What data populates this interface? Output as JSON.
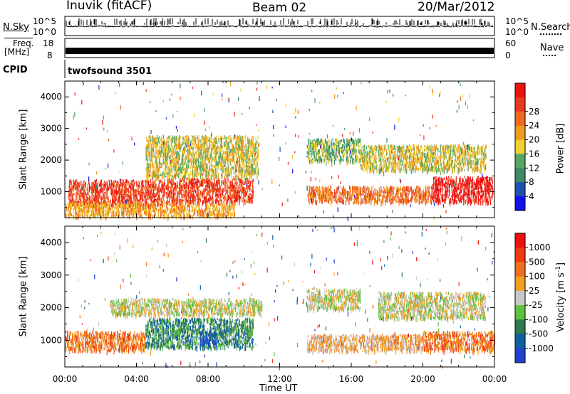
{
  "header": {
    "station": "Inuvik (fitACF)",
    "beam": "Beam 02",
    "date": "20/Mar/2012"
  },
  "strips": {
    "nsky": {
      "label": "N.Sky",
      "tick_top": "10^5",
      "tick_bottom": "10^0"
    },
    "nsearch": {
      "label": "N.Search",
      "tick_top": "10^5",
      "tick_bottom": "10^0"
    },
    "freq": {
      "label_line1": "Freq.",
      "label_line2": "[MHz]",
      "tick_top": "18",
      "tick_bottom": "8"
    },
    "nave": {
      "label": "Nave",
      "tick_top": "60",
      "tick_bottom": "0"
    },
    "cpid": {
      "label": "CPID",
      "value": "twofsound 3501"
    }
  },
  "chart_data": [
    {
      "type": "heatmap",
      "panel": "power",
      "ylabel": "Slant Range [km]",
      "xlabel": "Time UT",
      "ylim": [
        180,
        4500
      ],
      "y_ticks": [
        "1000",
        "2000",
        "3000",
        "4000"
      ],
      "x_ticks": [
        "00:00",
        "04:00",
        "08:00",
        "12:00",
        "16:00",
        "20:00",
        "00:00"
      ],
      "colorbar": {
        "label": "Power [dB]",
        "ticks": [
          "4",
          "8",
          "12",
          "16",
          "20",
          "24",
          "28"
        ],
        "colors": [
          "#1010f0",
          "#2050b0",
          "#3d8a68",
          "#55a865",
          "#f0d030",
          "#f09a20",
          "#f06a20",
          "#e83a20",
          "#f01010"
        ]
      },
      "echo_regions": [
        {
          "t": [
            0.2,
            5.5
          ],
          "r": [
            600,
            1400
          ],
          "level": 7
        },
        {
          "t": [
            0,
            9.5
          ],
          "r": [
            250,
            700
          ],
          "level": 5
        },
        {
          "t": [
            5.5,
            10.5
          ],
          "r": [
            700,
            1450
          ],
          "level": 7
        },
        {
          "t": [
            4.5,
            10.8
          ],
          "r": [
            1500,
            2800
          ],
          "level": 4
        },
        {
          "t": [
            13.5,
            16.5
          ],
          "r": [
            2000,
            2700
          ],
          "level": 3
        },
        {
          "t": [
            13.5,
            20.5
          ],
          "r": [
            700,
            1200
          ],
          "level": 6
        },
        {
          "t": [
            20.5,
            23.9
          ],
          "r": [
            700,
            1500
          ],
          "level": 8
        },
        {
          "t": [
            16.5,
            23.5
          ],
          "r": [
            1700,
            2500
          ],
          "level": 4
        }
      ]
    },
    {
      "type": "heatmap",
      "panel": "velocity",
      "ylabel": "Slant Range [km]",
      "xlabel": "Time UT",
      "ylim": [
        180,
        4500
      ],
      "y_ticks": [
        "1000",
        "2000",
        "3000",
        "4000"
      ],
      "x_ticks": [
        "00:00",
        "04:00",
        "08:00",
        "12:00",
        "16:00",
        "20:00",
        "00:00"
      ],
      "colorbar": {
        "label": "Velocity [m s",
        "label_sup": "-1",
        "label_end": "]",
        "ticks": [
          "1000",
          "500",
          "100",
          "25",
          "-25",
          "-100",
          "-500",
          "-1000"
        ],
        "colors": [
          "#2040d0",
          "#1060a0",
          "#307a50",
          "#60c040",
          "#c8c8c8",
          "#f0a020",
          "#f07020",
          "#f03a10",
          "#f01010"
        ]
      },
      "echo_regions": [
        {
          "t": [
            0,
            4.5
          ],
          "r": [
            700,
            1300
          ],
          "level": 6
        },
        {
          "t": [
            4.5,
            10.5
          ],
          "r": [
            800,
            1700
          ],
          "level": 2
        },
        {
          "t": [
            7.5,
            8.5
          ],
          "r": [
            900,
            1300
          ],
          "level": 0
        },
        {
          "t": [
            2.5,
            11
          ],
          "r": [
            1800,
            2300
          ],
          "level": 4
        },
        {
          "t": [
            13.5,
            16.5
          ],
          "r": [
            2000,
            2600
          ],
          "level": 4
        },
        {
          "t": [
            13.5,
            20
          ],
          "r": [
            700,
            1200
          ],
          "level": 5
        },
        {
          "t": [
            20,
            24
          ],
          "r": [
            700,
            1300
          ],
          "level": 6
        },
        {
          "t": [
            17.5,
            23.5
          ],
          "r": [
            1700,
            2500
          ],
          "level": 4
        }
      ]
    }
  ]
}
